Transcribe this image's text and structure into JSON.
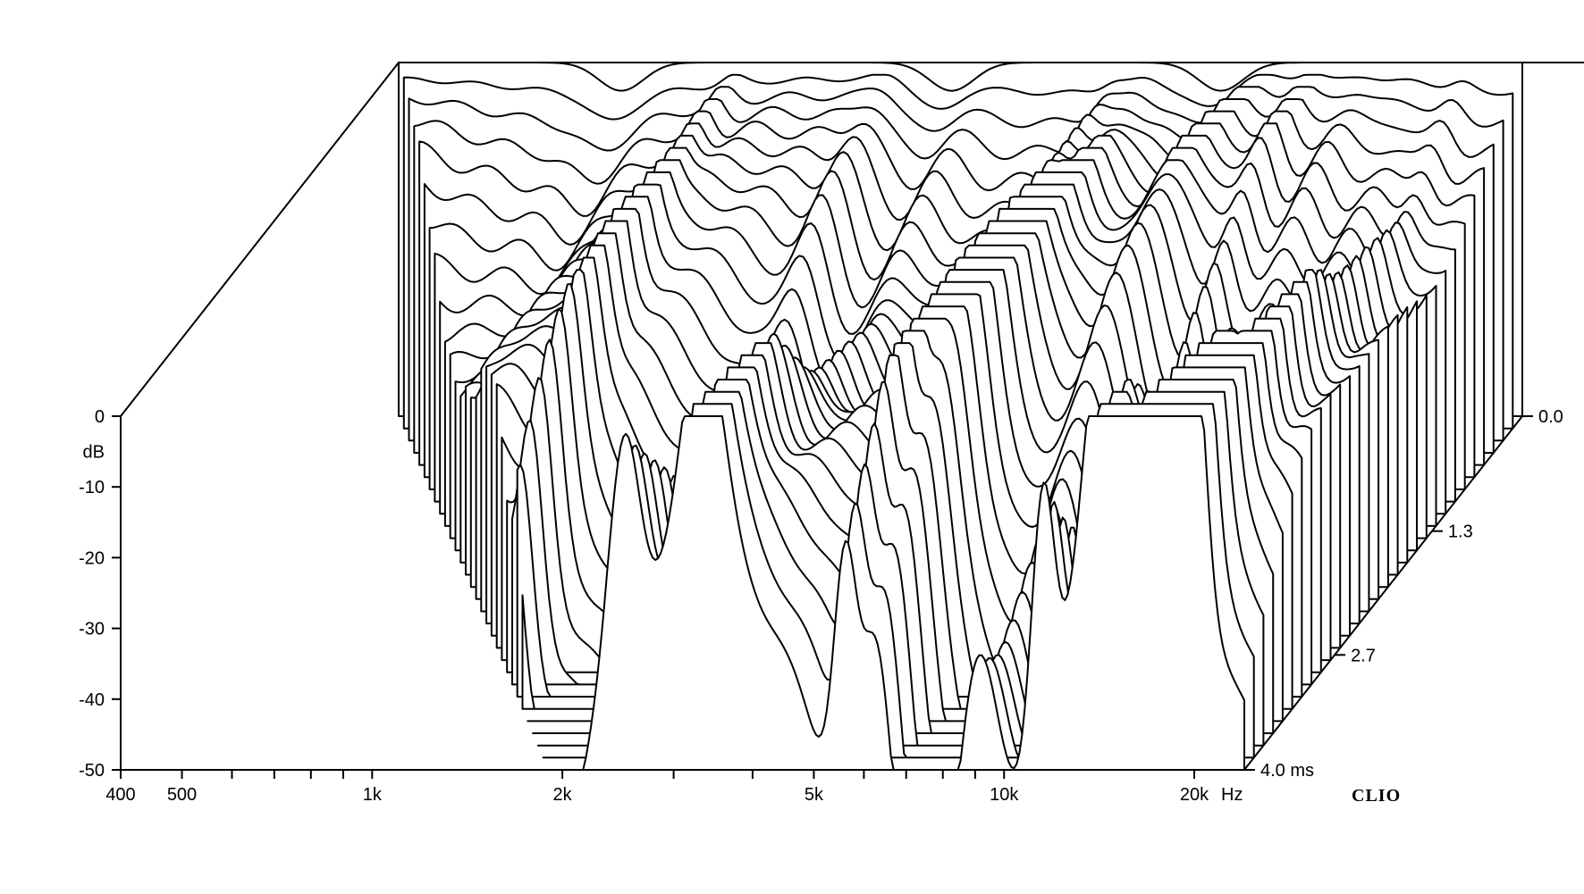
{
  "chart_data": {
    "type": "waterfall",
    "title": "",
    "x_axis": {
      "scale": "log",
      "unit": "Hz",
      "range": [
        400,
        24000
      ],
      "tick_labels": [
        {
          "value": 400,
          "label": "400"
        },
        {
          "value": 500,
          "label": "500"
        },
        {
          "value": 1000,
          "label": "1k"
        },
        {
          "value": 2000,
          "label": "2k"
        },
        {
          "value": 5000,
          "label": "5k"
        },
        {
          "value": 10000,
          "label": "10k"
        },
        {
          "value": 20000,
          "label": "20k"
        }
      ],
      "minor_ticks": [
        600,
        700,
        800,
        900,
        3000,
        4000,
        6000,
        7000,
        8000,
        9000
      ]
    },
    "y_axis": {
      "label": "dB",
      "range": [
        -50,
        0
      ],
      "ticks": [
        0,
        -10,
        -20,
        -30,
        -40,
        -50
      ],
      "tick_labels": [
        "0",
        "-10",
        "-20",
        "-30",
        "-40",
        "-50"
      ]
    },
    "z_axis": {
      "unit": "ms",
      "range": [
        0.0,
        4.0
      ],
      "tick_labels": [
        {
          "value": 0.0,
          "label": "0.0"
        },
        {
          "value": 1.3,
          "label": "1.3"
        },
        {
          "value": 2.7,
          "label": "2.7"
        },
        {
          "value": 4.0,
          "label": "4.0"
        }
      ]
    },
    "slice_count": 30,
    "slice_step_ms": 0.138,
    "cutoff_frequency_start_hz": 400,
    "cutoff_frequency_end_hz": 1900,
    "features": {
      "resonance_ridges_hz": [
        1400,
        2500,
        3300,
        5600,
        6300,
        9000,
        11500,
        14000,
        17000,
        20000
      ],
      "initial_dip_hz": [
        900,
        3000,
        8000
      ],
      "initial_level_db": 0,
      "decay_db_per_slice": 1.6
    }
  },
  "labels": {
    "brand": "CLIO"
  }
}
